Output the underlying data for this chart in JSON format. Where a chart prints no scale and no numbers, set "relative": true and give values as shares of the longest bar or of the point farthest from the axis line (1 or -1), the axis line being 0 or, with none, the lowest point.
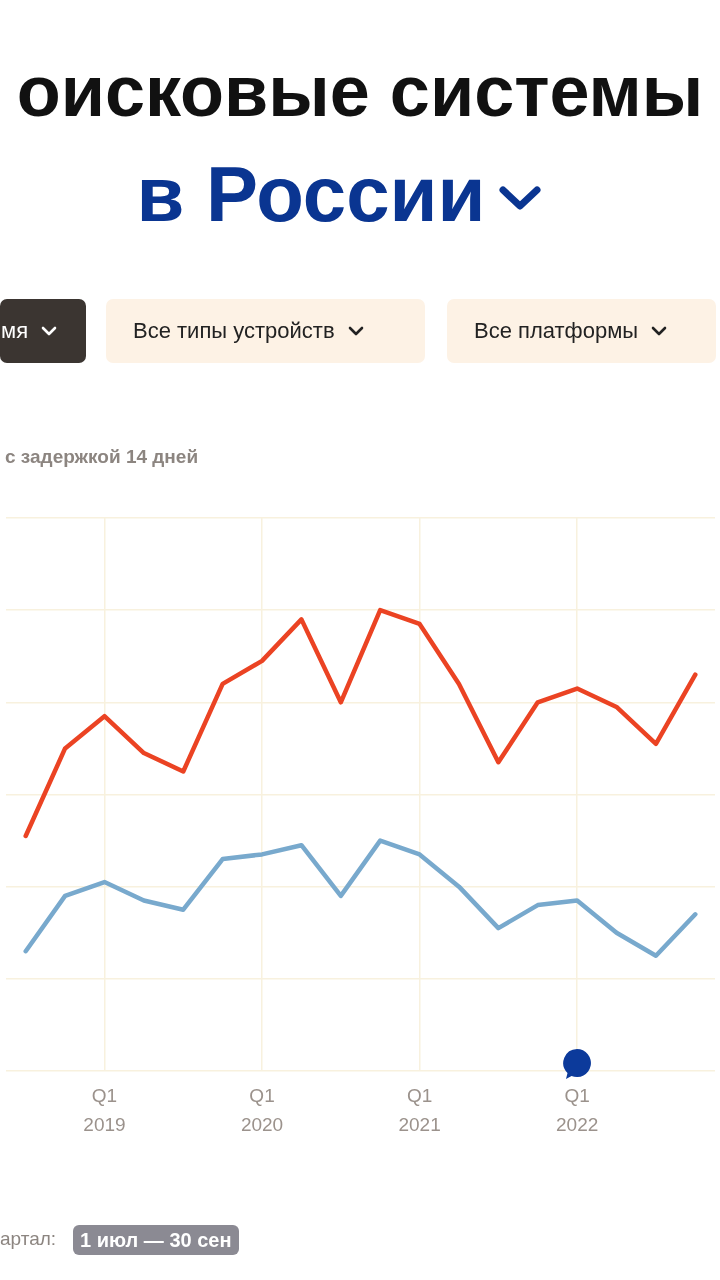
{
  "chart_data": {
    "type": "line",
    "title": "оисковые системы",
    "subtitle": "в России",
    "categories": [
      null,
      null,
      "Q1 2019",
      null,
      null,
      null,
      "Q1 2020",
      null,
      null,
      null,
      "Q1 2021",
      null,
      null,
      null,
      "Q1 2022",
      null,
      null,
      null
    ],
    "relative": true,
    "series": [
      {
        "color": "#eb4323",
        "values": [
          0.51,
          0.7,
          0.77,
          0.69,
          0.65,
          0.84,
          0.89,
          0.98,
          0.8,
          1,
          0.97,
          0.84,
          0.67,
          0.8,
          0.83,
          0.79,
          0.71,
          0.86
        ]
      },
      {
        "color": "#78a9cd",
        "values": [
          0.26,
          0.38,
          0.41,
          0.37,
          0.35,
          0.46,
          0.47,
          0.49,
          0.38,
          0.5,
          0.47,
          0.4,
          0.31,
          0.36,
          0.37,
          0.3,
          0.25,
          0.34
        ]
      }
    ],
    "grid": true,
    "legend": false,
    "marker": "none",
    "line_style": "solid",
    "annotations": [
      "мя",
      "Все типы устройств",
      "Все платформы",
      "с задержкой 14 дней",
      "артал:",
      "1 июл — 30 сен"
    ]
  }
}
